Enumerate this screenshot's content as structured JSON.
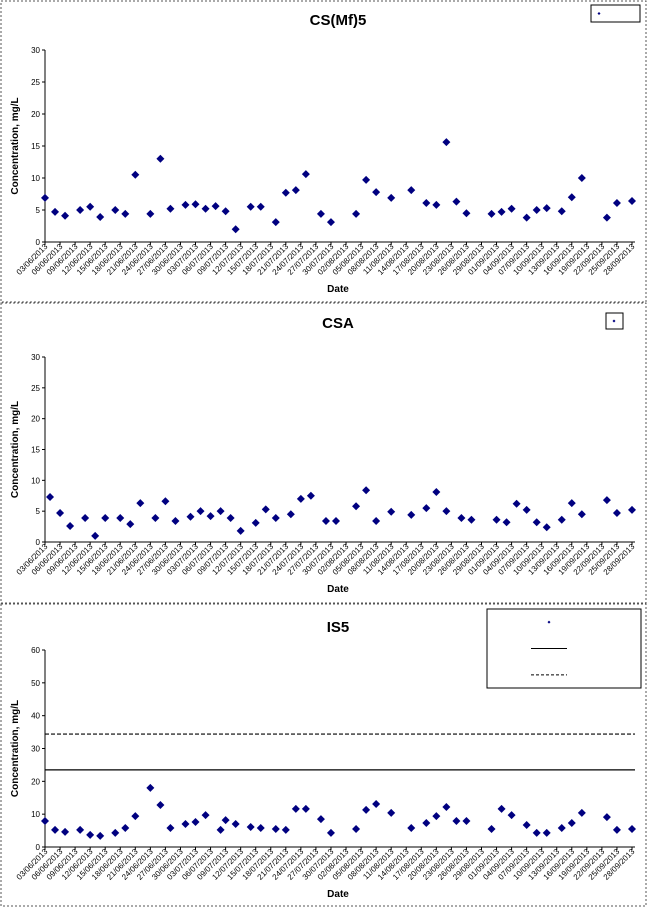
{
  "chart_data": [
    {
      "type": "scatter",
      "title": "CS(Mf)5",
      "xlabel": "Date",
      "ylabel": "Concentration, mg/L",
      "legend": "top-right",
      "xlim": [
        "03/06/2013",
        "28/09/2013"
      ],
      "xticks": [
        "03/06/2013",
        "06/06/2013",
        "09/06/2013",
        "12/06/2013",
        "15/06/2013",
        "18/06/2013",
        "21/06/2013",
        "24/06/2013",
        "27/06/2013",
        "30/06/2013",
        "03/07/2013",
        "06/07/2013",
        "09/07/2013",
        "12/07/2013",
        "15/07/2013",
        "18/07/2013",
        "21/07/2013",
        "24/07/2013",
        "27/07/2013",
        "30/07/2013",
        "02/08/2013",
        "05/08/2013",
        "08/08/2013",
        "11/08/2013",
        "14/08/2013",
        "17/08/2013",
        "20/08/2013",
        "23/08/2013",
        "26/08/2013",
        "29/08/2013",
        "01/09/2013",
        "04/09/2013",
        "07/09/2013",
        "10/09/2013",
        "13/09/2013",
        "16/09/2013",
        "19/09/2013",
        "22/09/2013",
        "25/09/2013",
        "28/09/2013"
      ],
      "ylim": [
        0,
        30
      ],
      "yticks": [
        0,
        5,
        10,
        15,
        20,
        25,
        30
      ],
      "series": [
        {
          "color": "#000080",
          "x": [
            "03/06/2013",
            "05/06/2013",
            "07/06/2013",
            "10/06/2013",
            "12/06/2013",
            "14/06/2013",
            "17/06/2013",
            "19/06/2013",
            "21/06/2013",
            "24/06/2013",
            "26/06/2013",
            "28/06/2013",
            "01/07/2013",
            "03/07/2013",
            "05/07/2013",
            "07/07/2013",
            "09/07/2013",
            "11/07/2013",
            "14/07/2013",
            "16/07/2013",
            "19/07/2013",
            "21/07/2013",
            "23/07/2013",
            "25/07/2013",
            "28/07/2013",
            "30/07/2013",
            "04/08/2013",
            "06/08/2013",
            "08/08/2013",
            "11/08/2013",
            "15/08/2013",
            "18/08/2013",
            "20/08/2013",
            "22/08/2013",
            "24/08/2013",
            "26/08/2013",
            "31/08/2013",
            "02/09/2013",
            "04/09/2013",
            "07/09/2013",
            "09/09/2013",
            "11/09/2013",
            "14/09/2013",
            "16/09/2013",
            "18/09/2013",
            "23/09/2013",
            "25/09/2013",
            "28/09/2013"
          ],
          "values": [
            6.9,
            4.7,
            4.1,
            5.0,
            5.5,
            3.9,
            5.0,
            4.4,
            10.5,
            4.4,
            13.0,
            5.2,
            5.8,
            5.9,
            5.2,
            5.6,
            4.8,
            2.0,
            5.5,
            5.5,
            3.1,
            7.7,
            8.1,
            10.6,
            4.4,
            3.1,
            4.4,
            9.7,
            7.8,
            6.9,
            8.1,
            6.1,
            5.8,
            15.6,
            6.3,
            4.5,
            4.4,
            4.7,
            5.2,
            3.8,
            5.0,
            5.3,
            4.8,
            7.0,
            10.0,
            3.8,
            6.1,
            6.4
          ]
        }
      ]
    },
    {
      "type": "scatter",
      "title": "CSA",
      "xlabel": "Date",
      "ylabel": "Concentration, mg/L",
      "legend": "top-right",
      "xlim": [
        "03/06/2013",
        "28/09/2013"
      ],
      "xticks": [
        "03/06/2013",
        "06/06/2013",
        "09/06/2013",
        "12/06/2013",
        "15/06/2013",
        "18/06/2013",
        "21/06/2013",
        "24/06/2013",
        "27/06/2013",
        "30/06/2013",
        "03/07/2013",
        "06/07/2013",
        "09/07/2013",
        "12/07/2013",
        "15/07/2013",
        "18/07/2013",
        "21/07/2013",
        "24/07/2013",
        "27/07/2013",
        "30/07/2013",
        "02/08/2013",
        "05/08/2013",
        "08/08/2013",
        "11/08/2013",
        "14/08/2013",
        "17/08/2013",
        "20/08/2013",
        "23/08/2013",
        "26/08/2013",
        "29/08/2013",
        "01/09/2013",
        "04/09/2013",
        "07/09/2013",
        "10/09/2013",
        "13/09/2013",
        "16/09/2013",
        "19/09/2013",
        "22/09/2013",
        "25/09/2013",
        "28/09/2013"
      ],
      "ylim": [
        0,
        30
      ],
      "yticks": [
        0,
        5,
        10,
        15,
        20,
        25,
        30
      ],
      "series": [
        {
          "color": "#000080",
          "x": [
            "04/06/2013",
            "06/06/2013",
            "08/06/2013",
            "11/06/2013",
            "13/06/2013",
            "15/06/2013",
            "18/06/2013",
            "20/06/2013",
            "22/06/2013",
            "25/06/2013",
            "27/06/2013",
            "29/06/2013",
            "02/07/2013",
            "04/07/2013",
            "06/07/2013",
            "08/07/2013",
            "10/07/2013",
            "12/07/2013",
            "15/07/2013",
            "17/07/2013",
            "19/07/2013",
            "22/07/2013",
            "24/07/2013",
            "26/07/2013",
            "29/07/2013",
            "31/07/2013",
            "04/08/2013",
            "06/08/2013",
            "08/08/2013",
            "11/08/2013",
            "15/08/2013",
            "18/08/2013",
            "20/08/2013",
            "22/08/2013",
            "25/08/2013",
            "27/08/2013",
            "01/09/2013",
            "03/09/2013",
            "05/09/2013",
            "07/09/2013",
            "09/09/2013",
            "11/09/2013",
            "14/09/2013",
            "16/09/2013",
            "18/09/2013",
            "23/09/2013",
            "25/09/2013",
            "28/09/2013"
          ],
          "values": [
            7.3,
            4.7,
            2.6,
            3.9,
            1.0,
            3.9,
            3.9,
            2.9,
            6.3,
            3.9,
            6.6,
            3.4,
            4.1,
            5.0,
            4.2,
            5.0,
            3.9,
            1.8,
            3.1,
            5.3,
            3.9,
            4.5,
            7.0,
            7.5,
            3.4,
            3.4,
            5.8,
            8.4,
            3.4,
            4.9,
            4.4,
            5.5,
            8.1,
            5.0,
            3.9,
            3.6,
            3.6,
            3.2,
            6.2,
            5.2,
            3.2,
            2.4,
            3.6,
            6.3,
            4.5,
            6.8,
            4.7,
            5.2
          ]
        }
      ]
    },
    {
      "type": "scatter",
      "title": "IS5",
      "xlabel": "Date",
      "ylabel": "Concentration, mg/L",
      "legend": "top-right",
      "xlim": [
        "03/06/2013",
        "28/09/2013"
      ],
      "xticks": [
        "03/06/2013",
        "06/06/2013",
        "09/06/2013",
        "12/06/2013",
        "15/06/2013",
        "18/06/2013",
        "21/06/2013",
        "24/06/2013",
        "27/06/2013",
        "30/06/2013",
        "03/07/2013",
        "06/07/2013",
        "09/07/2013",
        "12/07/2013",
        "15/07/2013",
        "18/07/2013",
        "21/07/2013",
        "24/07/2013",
        "27/07/2013",
        "30/07/2013",
        "02/08/2013",
        "05/08/2013",
        "08/08/2013",
        "11/08/2013",
        "14/08/2013",
        "17/08/2013",
        "20/08/2013",
        "23/08/2013",
        "26/08/2013",
        "29/08/2013",
        "01/09/2013",
        "04/09/2013",
        "07/09/2013",
        "10/09/2013",
        "13/09/2013",
        "16/09/2013",
        "19/09/2013",
        "22/09/2013",
        "25/09/2013",
        "28/09/2013"
      ],
      "ylim": [
        0,
        60
      ],
      "yticks": [
        0,
        10,
        20,
        30,
        40,
        50,
        60
      ],
      "lines": [
        {
          "value": 23.5,
          "style": "solid"
        },
        {
          "value": 34.4,
          "style": "dashed"
        }
      ],
      "series": [
        {
          "color": "#000080",
          "x": [
            "03/06/2013",
            "05/06/2013",
            "07/06/2013",
            "10/06/2013",
            "12/06/2013",
            "14/06/2013",
            "17/06/2013",
            "19/06/2013",
            "21/06/2013",
            "24/06/2013",
            "26/06/2013",
            "28/06/2013",
            "01/07/2013",
            "03/07/2013",
            "05/07/2013",
            "08/07/2013",
            "09/07/2013",
            "11/07/2013",
            "14/07/2013",
            "16/07/2013",
            "19/07/2013",
            "21/07/2013",
            "23/07/2013",
            "25/07/2013",
            "28/07/2013",
            "30/07/2013",
            "04/08/2013",
            "06/08/2013",
            "08/08/2013",
            "11/08/2013",
            "15/08/2013",
            "18/08/2013",
            "20/08/2013",
            "22/08/2013",
            "24/08/2013",
            "26/08/2013",
            "31/08/2013",
            "02/09/2013",
            "04/09/2013",
            "07/09/2013",
            "09/09/2013",
            "11/09/2013",
            "14/09/2013",
            "16/09/2013",
            "18/09/2013",
            "23/09/2013",
            "25/09/2013",
            "28/09/2013"
          ],
          "values": [
            7.9,
            5.2,
            4.6,
            5.2,
            3.7,
            3.4,
            4.3,
            5.8,
            9.4,
            18.0,
            12.8,
            5.8,
            7.0,
            7.6,
            9.7,
            5.2,
            8.2,
            7.0,
            6.1,
            5.8,
            5.5,
            5.2,
            11.6,
            11.6,
            8.5,
            4.3,
            5.5,
            11.3,
            13.1,
            10.4,
            5.8,
            7.3,
            9.4,
            12.2,
            7.9,
            7.9,
            5.5,
            11.6,
            9.7,
            6.7,
            4.3,
            4.3,
            5.8,
            7.3,
            10.4,
            9.1,
            5.2,
            5.5
          ]
        }
      ]
    }
  ]
}
